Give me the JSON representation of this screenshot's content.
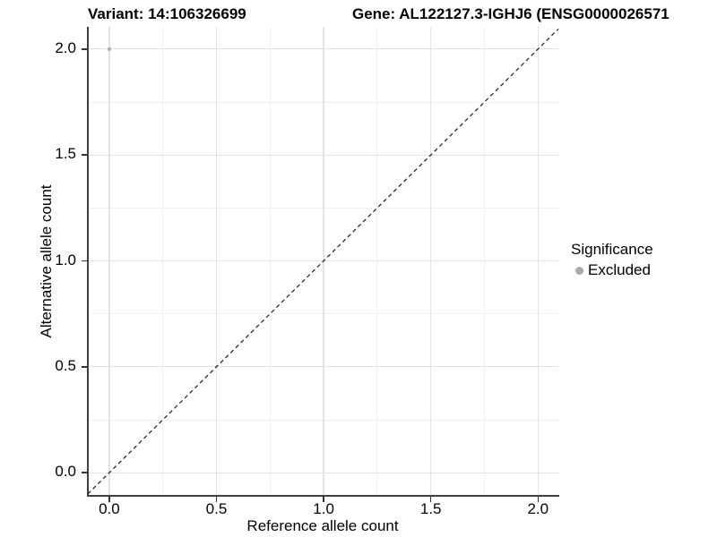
{
  "titles": {
    "variant": "Variant: 14:106326699",
    "gene": "Gene: AL122127.3-IGHJ6 (ENSG0000026571"
  },
  "chart_data": {
    "type": "scatter",
    "xlabel": "Reference allele count",
    "ylabel": "Alternative allele count",
    "x_ticks": [
      0.0,
      0.5,
      1.0,
      1.5,
      2.0
    ],
    "y_ticks": [
      0.0,
      0.5,
      1.0,
      1.5,
      2.0
    ],
    "x_minor_ticks": [
      0.25,
      0.75,
      1.25,
      1.75
    ],
    "y_minor_ticks": [
      0.25,
      0.75,
      1.25,
      1.75
    ],
    "xlim": [
      -0.1,
      2.095
    ],
    "ylim": [
      -0.105,
      2.105
    ],
    "grid": true,
    "points": [
      {
        "x": 0.0,
        "y": 2.0,
        "series": "Excluded",
        "color": "#b1b1b1",
        "radius": 2.2
      }
    ],
    "abline": {
      "slope": 1,
      "intercept": 0,
      "style": "dashed",
      "color": "#1a1a1a"
    },
    "legend": {
      "position": "right",
      "title": "Significance",
      "items": [
        {
          "label": "Excluded",
          "color": "#a9a9a9"
        }
      ]
    },
    "colors": {
      "background": "#ffffff",
      "grid_major": "#e3e3e3",
      "grid_minor": "#f0f0f0",
      "axis_line": "#404040",
      "tick_mark": "#333333",
      "text": "#000000"
    }
  }
}
